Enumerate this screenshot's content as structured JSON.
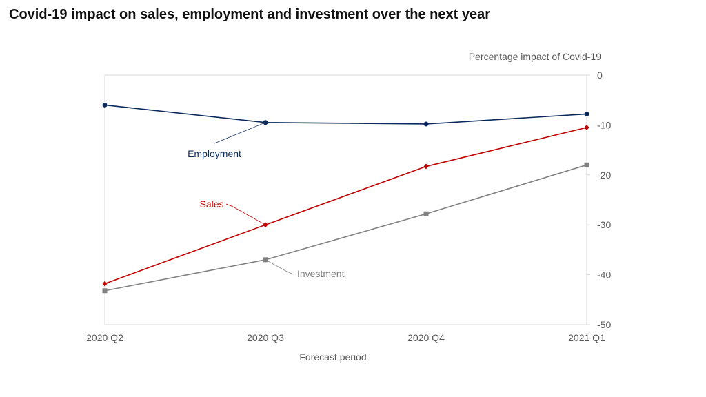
{
  "chart_data": {
    "type": "line",
    "title": "Covid-19 impact on sales, employment and investment over the next year",
    "ylabel": "Percentage impact of Covid-19",
    "xlabel": "Forecast period",
    "categories": [
      "2020 Q2",
      "2020 Q3",
      "2020 Q4",
      "2021 Q1"
    ],
    "ylim": [
      -50,
      0
    ],
    "yticks": [
      0,
      -10,
      -20,
      -30,
      -40,
      -50
    ],
    "y_axis_side": "right",
    "grid": false,
    "series": [
      {
        "name": "Employment",
        "values": [
          -6,
          -9.5,
          -9.8,
          -7.8
        ],
        "color": "#0b2a5c",
        "marker": "circle"
      },
      {
        "name": "Sales",
        "values": [
          -41.8,
          -30,
          -18.3,
          -10.5
        ],
        "color": "#c00000",
        "marker": "diamond"
      },
      {
        "name": "Investment",
        "values": [
          -43.2,
          -37,
          -27.8,
          -18
        ],
        "color": "#808080",
        "marker": "square"
      }
    ],
    "annotations": [
      {
        "series": "Employment",
        "text": "Employment",
        "point_index": 1
      },
      {
        "series": "Sales",
        "text": "Sales",
        "point_index": 1
      },
      {
        "series": "Investment",
        "text": "Investment",
        "point_index": 1
      }
    ]
  }
}
